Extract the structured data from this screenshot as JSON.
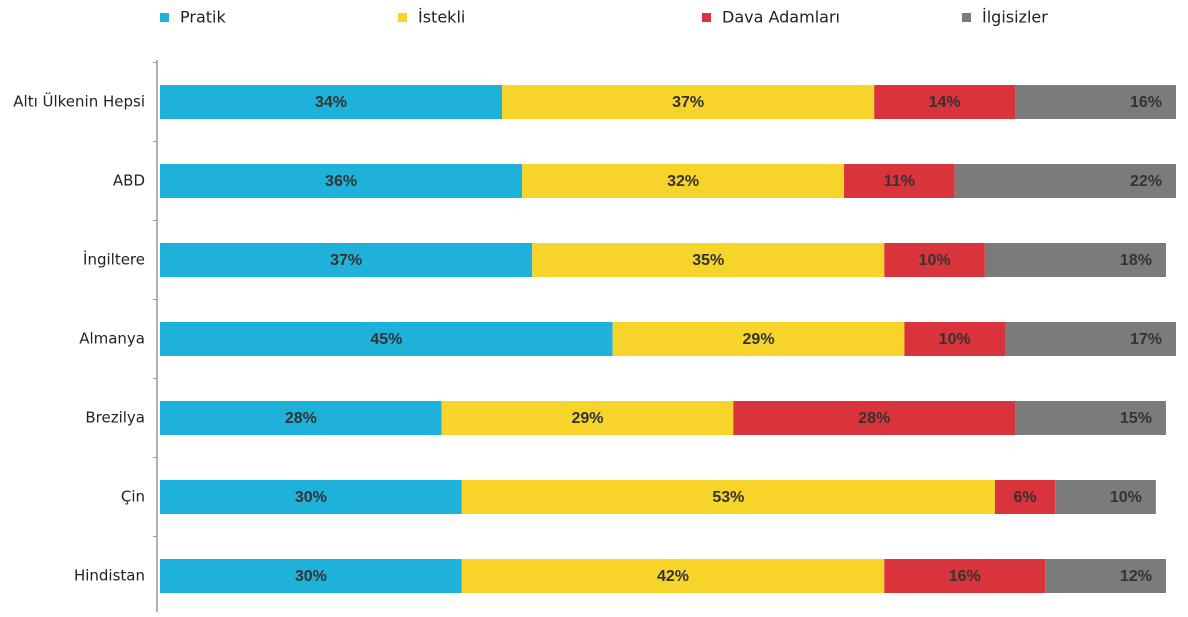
{
  "chart_data": {
    "type": "stacked-bar-horizontal",
    "categories": [
      "Altı Ülkenin Hepsi",
      "ABD",
      "İngiltere",
      "Almanya",
      "Brezilya",
      "Çin",
      "Hindistan"
    ],
    "xlim": [
      0,
      101
    ],
    "series": [
      {
        "name": "Pratik",
        "color": "#1eb1d9",
        "values": [
          34,
          36,
          37,
          45,
          28,
          30,
          30
        ],
        "value_labels": [
          "34%",
          "36%",
          "37%",
          "45%",
          "28%",
          "30%",
          "30%"
        ]
      },
      {
        "name": "İstekli",
        "color": "#f6d42a",
        "values": [
          37,
          32,
          35,
          29,
          29,
          53,
          42
        ],
        "value_labels": [
          "37%",
          "32%",
          "35%",
          "29%",
          "29%",
          "53%",
          "42%"
        ]
      },
      {
        "name": "Dava Adamları",
        "color": "#d9343b",
        "values": [
          14,
          11,
          10,
          10,
          28,
          6,
          16
        ],
        "value_labels": [
          "14%",
          "11%",
          "10%",
          "10%",
          "28%",
          "6%",
          "16%"
        ]
      },
      {
        "name": "İlgisizler",
        "color": "#7b7b7b",
        "values": [
          16,
          22,
          18,
          17,
          15,
          10,
          12
        ],
        "value_labels": [
          "16%",
          "22%",
          "18%",
          "17%",
          "15%",
          "10%",
          "12%"
        ]
      }
    ]
  }
}
